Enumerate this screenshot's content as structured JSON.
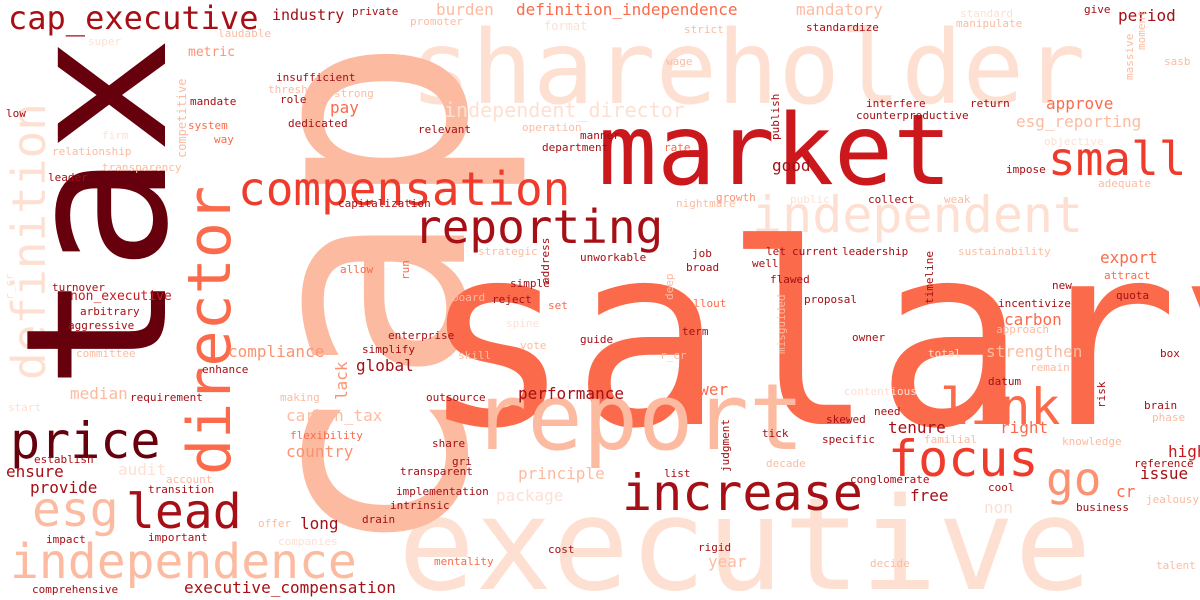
{
  "colors": {
    "background": "#ffffff",
    "darkest": "#67000d",
    "dark": "#a50f15",
    "red": "#cb181d",
    "salmon": "#ef3b2c",
    "coral": "#fb6a4a",
    "peach": "#fc9272",
    "light": "#fcbba1",
    "pale": "#fee0d2"
  },
  "words": {
    "salary": "salary",
    "cap": "cap",
    "tax": "tax",
    "executive": "executive",
    "shareholder": "shareholder",
    "market": "market",
    "report": "report",
    "director": "director",
    "compensation": "compensation",
    "independent": "independent",
    "independence": "independence",
    "definition": "definition",
    "cap_executive": "cap_executive",
    "reporting": "reporting",
    "increase": "increase",
    "focus": "focus",
    "price": "price",
    "small": "small",
    "link": "link",
    "lead": "lead",
    "esg": "esg",
    "go": "go",
    "independent_director": "independent_director",
    "definition_independence": "definition_independence",
    "industry": "industry",
    "private": "private",
    "burden": "burden",
    "promoter": "promoter",
    "format": "format",
    "mandatory": "mandatory",
    "standardize": "standardize",
    "standard": "standard",
    "manipulate": "manipulate",
    "give": "give",
    "period": "period",
    "strict": "strict",
    "laudable": "laudable",
    "metric": "metric",
    "wage": "wage",
    "sasb": "sasb",
    "insufficient": "insufficient",
    "threshold": "threshold",
    "strong": "strong",
    "role": "role",
    "mandate": "mandate",
    "pay": "pay",
    "publish": "publish",
    "interfere": "interfere",
    "return": "return",
    "approve": "approve",
    "counterproductive": "counterproductive",
    "esg_reporting": "esg_reporting",
    "low": "low",
    "system": "system",
    "dedicated": "dedicated",
    "relevant": "relevant",
    "operation": "operation",
    "manner": "manner",
    "way": "way",
    "firm": "firm",
    "relationship": "relationship",
    "department": "department",
    "rate": "rate",
    "transparency": "transparency",
    "good": "good",
    "impose": "impose",
    "leader": "leader",
    "adequate": "adequate",
    "capitalization": "capitalization",
    "nightmare": "nightmare",
    "growth": "growth",
    "collect": "collect",
    "weak": "weak",
    "strategic": "strategic",
    "address": "address",
    "job": "job",
    "let": "let",
    "current": "current",
    "leadership": "leadership",
    "sustainability": "sustainability",
    "allow": "allow",
    "run": "run",
    "unworkable": "unworkable",
    "well": "well",
    "broad": "broad",
    "export": "export",
    "attract": "attract",
    "flawed": "flawed",
    "timeline": "timeline",
    "turnover": "turnover",
    "simple": "simple",
    "deep": "deep",
    "new": "new",
    "quota": "quota",
    "non_executive": "non_executive",
    "board": "board",
    "reject": "reject",
    "rollout": "rollout",
    "proposal": "proposal",
    "incentivize": "incentivize",
    "arbitrary": "arbitrary",
    "set": "set",
    "aggressive": "aggressive",
    "enterprise": "enterprise",
    "spine": "spine",
    "term": "term",
    "carbon": "carbon",
    "approach": "approach",
    "guide": "guide",
    "owner": "owner",
    "committee": "committee",
    "vote": "vote",
    "simplify": "simplify",
    "compliance": "compliance",
    "skill": "skill",
    "r_cr": "r_cr",
    "strengthen": "strengthen",
    "box": "box",
    "total": "total",
    "enhance": "enhance",
    "global": "global",
    "remain": "remain",
    "lack": "lack",
    "datum": "datum",
    "median": "median",
    "making": "making",
    "requirement": "requirement",
    "outsource": "outsource",
    "performance": "performance",
    "power": "power",
    "risk": "risk",
    "contentious": "contentious",
    "start": "start",
    "need": "need",
    "brain": "brain",
    "phase": "phase",
    "carbon_tax": "carbon_tax",
    "skewed": "skewed",
    "tenure": "tenure",
    "right": "right",
    "tick": "tick",
    "specific": "specific",
    "familial": "familial",
    "knowledge": "knowledge",
    "flexibility": "flexibility",
    "judgment": "judgment",
    "high": "high",
    "establish": "establish",
    "share": "share",
    "country": "country",
    "decade": "decade",
    "audit": "audit",
    "gri": "gri",
    "principle": "principle",
    "list": "list",
    "reference": "reference",
    "ensure": "ensure",
    "transparent": "transparent",
    "conglomerate": "conglomerate",
    "issue": "issue",
    "account": "account",
    "transition": "transition",
    "provide": "provide",
    "package": "package",
    "implementation": "implementation",
    "free": "free",
    "cool": "cool",
    "cr": "cr",
    "jealousy": "jealousy",
    "non": "non",
    "intrinsic": "intrinsic",
    "business": "business",
    "offer": "offer",
    "long": "long",
    "drain": "drain",
    "impact": "impact",
    "important": "important",
    "companies": "companies",
    "rigid": "rigid",
    "cost": "cost",
    "mentality": "mentality",
    "year": "year",
    "decide": "decide",
    "talent": "talent",
    "comprehensive": "comprehensive",
    "executive_compensation": "executive_compensation",
    "competitive": "competitive",
    "misguided": "misguided",
    "public": "public",
    "massive": "massive",
    "objective": "objective",
    "moment": "moment",
    "super": "super"
  }
}
